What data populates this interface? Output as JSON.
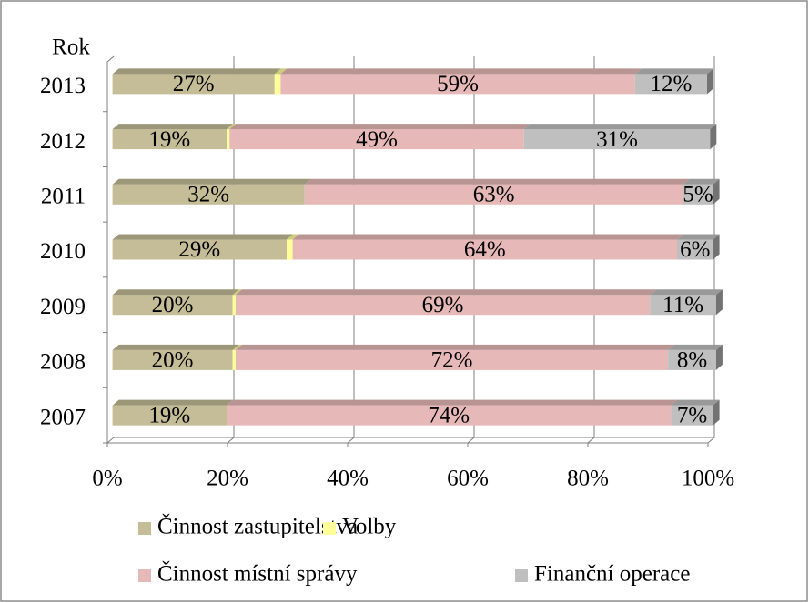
{
  "chart_data": {
    "type": "bar",
    "orientation": "horizontal",
    "stacked": true,
    "ylabel": "Rok",
    "categories": [
      "2007",
      "2008",
      "2009",
      "2010",
      "2011",
      "2012",
      "2013"
    ],
    "series": [
      {
        "name": "Činnost zastupitelstva",
        "color": "#c4bd97",
        "values": [
          19,
          20,
          20,
          29,
          32,
          19,
          27
        ],
        "value_labels": [
          "19%",
          "20%",
          "20%",
          "29%",
          "32%",
          "19%",
          "27%"
        ]
      },
      {
        "name": "Volby",
        "color": "#ffff99",
        "values": [
          0,
          0.5,
          0.5,
          1,
          0,
          0.5,
          1
        ]
      },
      {
        "name": "Činnost místní správy",
        "color": "#e6b9b8",
        "values": [
          74,
          72,
          69,
          64,
          63,
          49,
          59
        ],
        "value_labels": [
          "74%",
          "72%",
          "69%",
          "64%",
          "63%",
          "49%",
          "59%"
        ]
      },
      {
        "name": "Finanční operace",
        "color": "#bfbfbf",
        "values": [
          7,
          8,
          11,
          6,
          5,
          31,
          12
        ],
        "value_labels": [
          "7%",
          "8%",
          "11%",
          "6%",
          "5%",
          "31%",
          "12%"
        ]
      }
    ],
    "xlim": [
      0,
      100
    ],
    "xticks": [
      {
        "value": 0,
        "label": "0%"
      },
      {
        "value": 20,
        "label": "20%"
      },
      {
        "value": 40,
        "label": "40%"
      },
      {
        "value": 60,
        "label": "60%"
      },
      {
        "value": 80,
        "label": "80%"
      },
      {
        "value": 100,
        "label": "100%"
      }
    ],
    "grid": true
  }
}
